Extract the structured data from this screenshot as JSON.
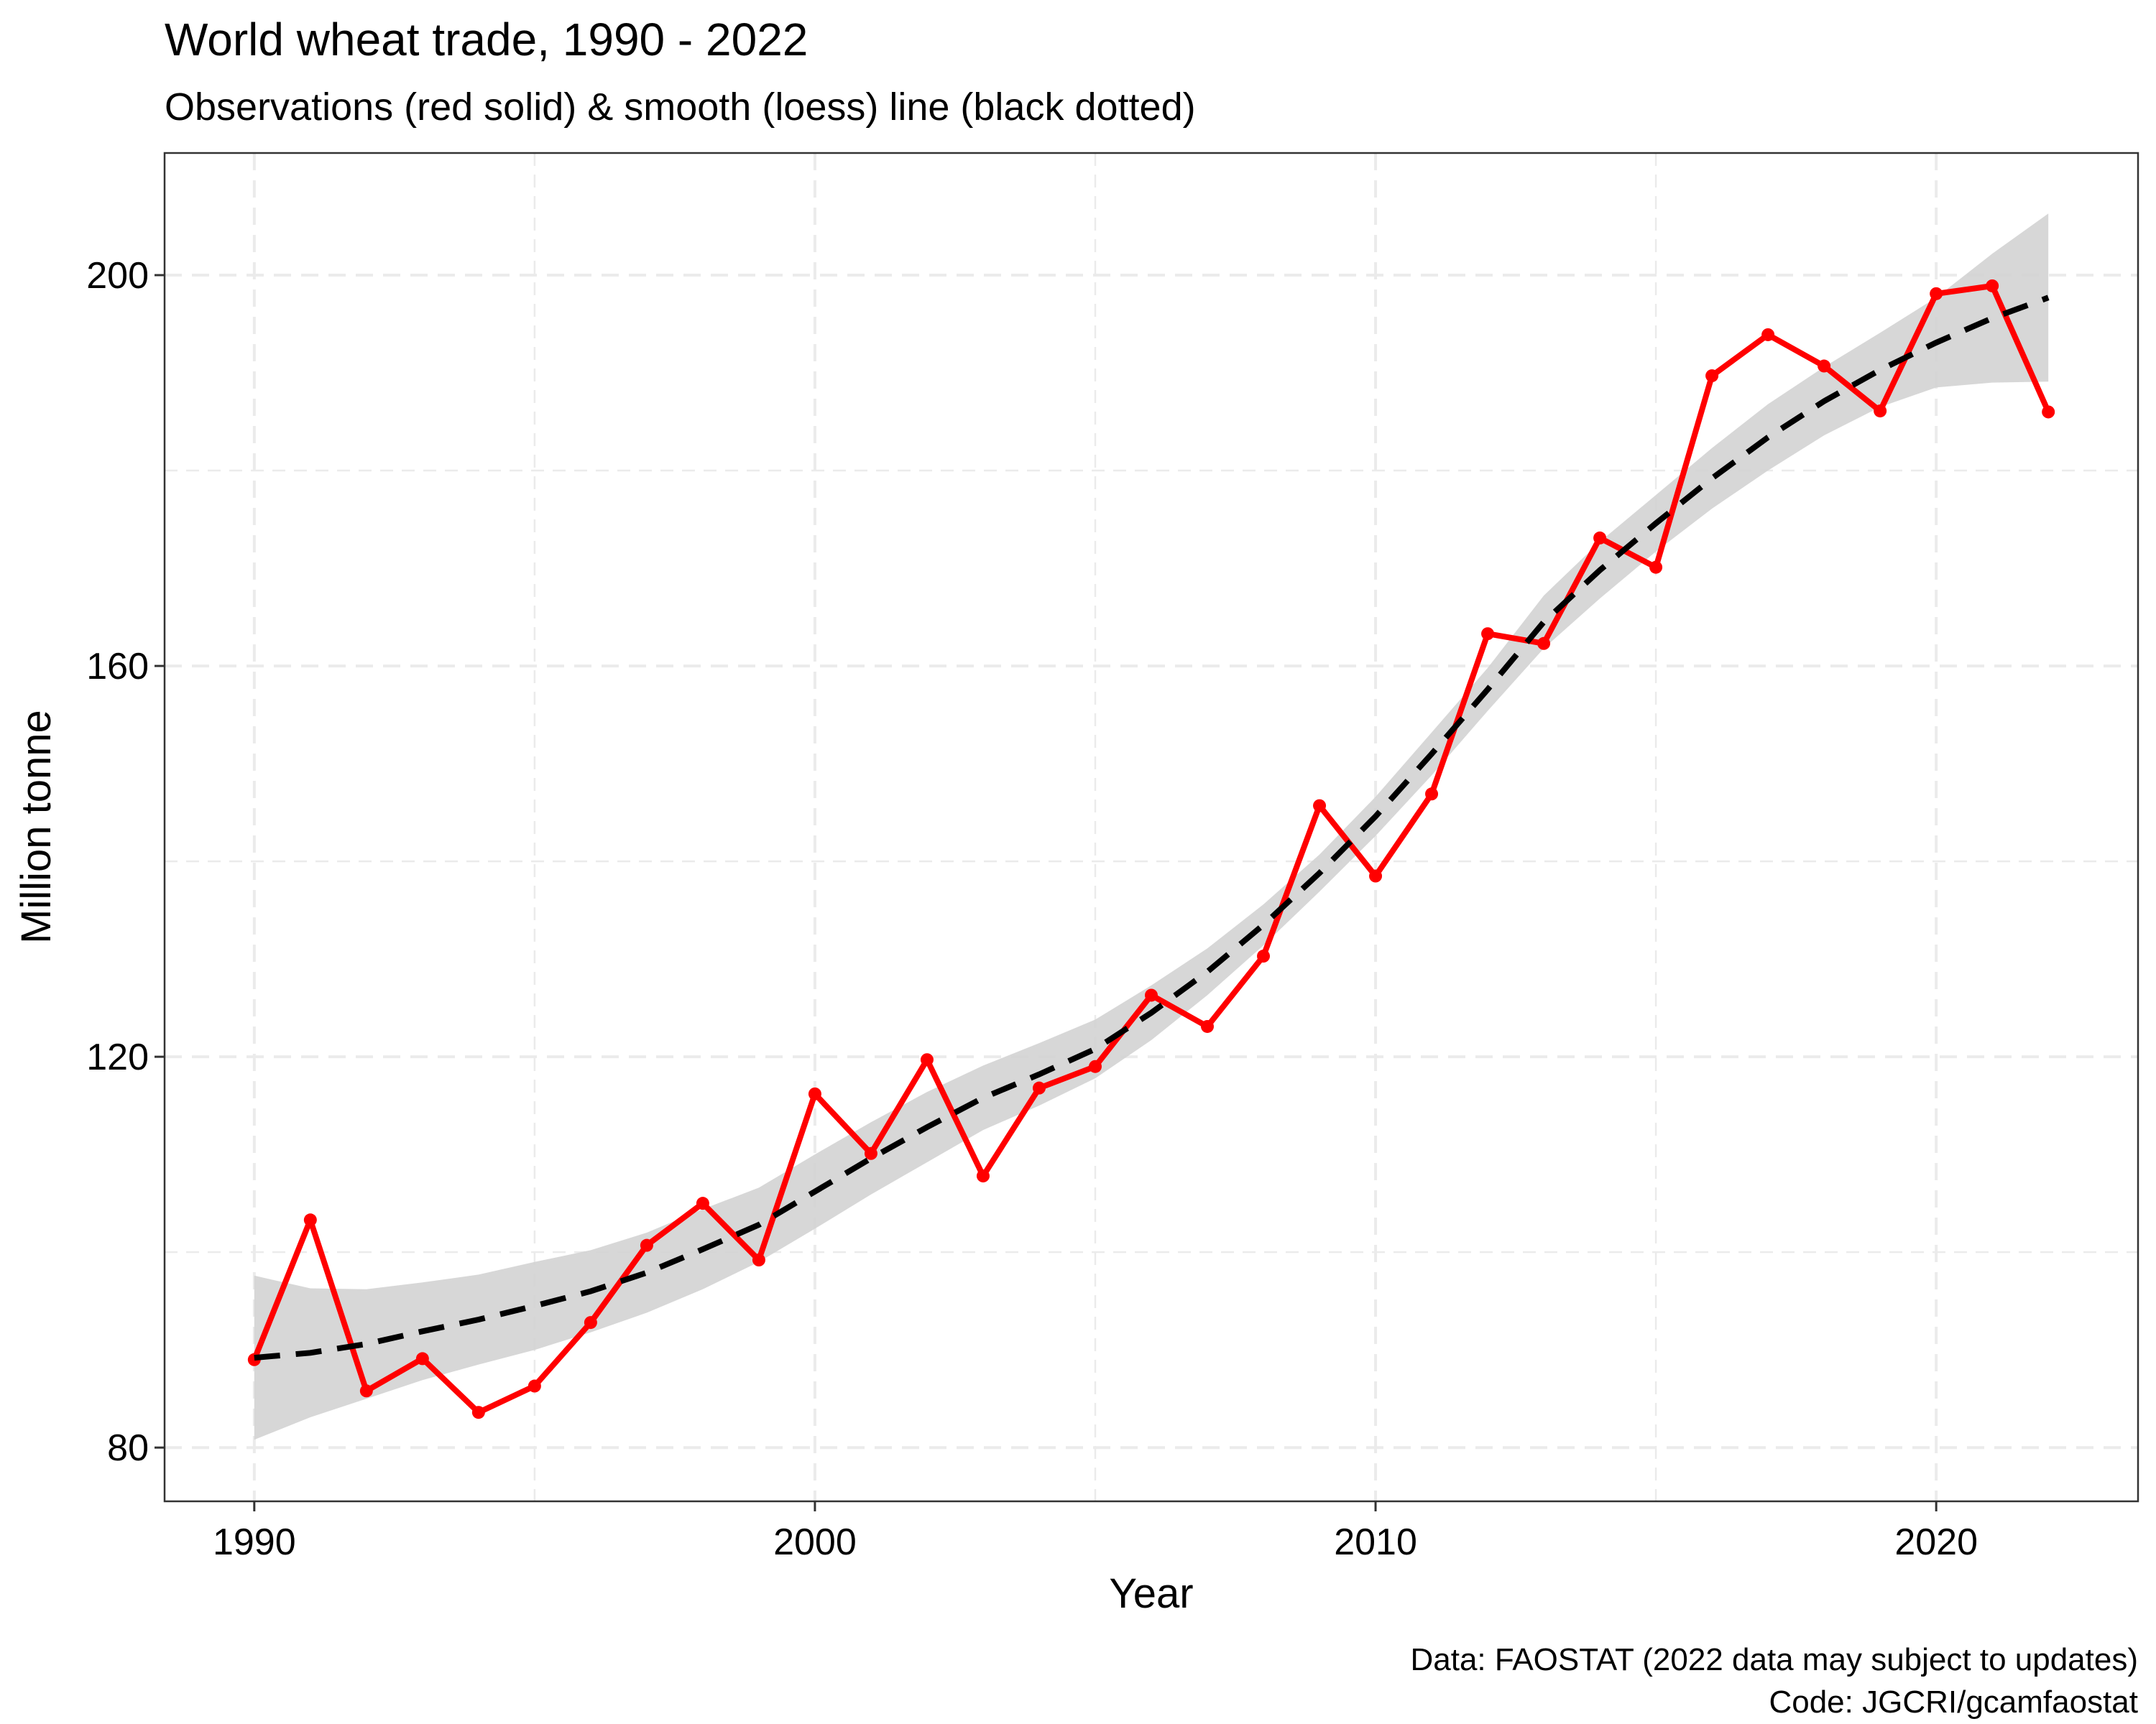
{
  "chart_data": {
    "type": "line",
    "title": "World wheat trade, 1990 - 2022",
    "subtitle": "Observations (red solid) & smooth (loess) line (black dotted)",
    "xlabel": "Year",
    "ylabel": "Million tonne",
    "caption_lines": [
      "Data: FAOSTAT (2022 data may subject to updates)",
      "Code: JGCRI/gcamfaostat"
    ],
    "xlim": [
      1988.4,
      2023.6
    ],
    "ylim": [
      74.5,
      212.5
    ],
    "x_ticks": [
      1990,
      2000,
      2010,
      2020
    ],
    "y_ticks": [
      80,
      120,
      160,
      200
    ],
    "x_minor": [
      1995,
      2005,
      2015
    ],
    "y_minor": [
      100,
      140,
      180
    ],
    "grid": true,
    "grid_style": "dashed",
    "legend": "none",
    "colors": {
      "observations": "#ff0000",
      "smooth": "#000000",
      "confidence_band": "#d3d3d3",
      "grid": "#ebebeb",
      "panel_border": "#333333"
    },
    "series": [
      {
        "style": "solid",
        "x": [
          1990,
          1991,
          1992,
          1993,
          1994,
          1995,
          1996,
          1997,
          1998,
          1999,
          2000,
          2001,
          2002,
          2003,
          2004,
          2005,
          2006,
          2007,
          2008,
          2009,
          2010,
          2011,
          2012,
          2013,
          2014,
          2015,
          2016,
          2017,
          2018,
          2019,
          2020,
          2021,
          2022
        ],
        "y": [
          89.0,
          103.3,
          85.8,
          89.1,
          83.6,
          86.3,
          92.8,
          100.7,
          105.0,
          99.2,
          116.2,
          110.1,
          119.7,
          107.8,
          116.8,
          119.0,
          126.3,
          123.1,
          130.3,
          145.7,
          138.5,
          146.9,
          163.3,
          162.3,
          173.1,
          170.1,
          189.7,
          193.9,
          190.7,
          186.1,
          198.1,
          198.9,
          186.0
        ]
      },
      {
        "style": "dashed",
        "x": [
          1990,
          1991,
          1992,
          1993,
          1994,
          1995,
          1996,
          1997,
          1998,
          1999,
          2000,
          2001,
          2002,
          2003,
          2004,
          2005,
          2006,
          2007,
          2008,
          2009,
          2010,
          2011,
          2012,
          2013,
          2014,
          2015,
          2016,
          2017,
          2018,
          2019,
          2020,
          2021,
          2022
        ],
        "y": [
          89.2,
          89.7,
          90.6,
          91.9,
          93.1,
          94.5,
          96.0,
          97.9,
          100.3,
          102.8,
          106.2,
          109.6,
          112.8,
          115.8,
          118.2,
          120.8,
          124.5,
          128.7,
          133.5,
          138.8,
          144.6,
          151.0,
          157.6,
          164.5,
          169.8,
          174.6,
          179.2,
          183.4,
          187.1,
          190.3,
          193.1,
          195.6,
          197.7
        ],
        "band_low": [
          80.8,
          83.1,
          85.0,
          86.9,
          88.5,
          90.0,
          91.8,
          93.8,
          96.2,
          99.0,
          102.4,
          105.9,
          109.2,
          112.5,
          115.0,
          117.8,
          121.7,
          126.3,
          131.4,
          136.9,
          142.6,
          148.8,
          155.4,
          161.8,
          166.9,
          171.7,
          176.1,
          180.0,
          183.6,
          186.5,
          188.5,
          189.0,
          189.1
        ],
        "band_high": [
          97.6,
          96.3,
          96.2,
          96.9,
          97.7,
          99.0,
          100.2,
          102.0,
          104.4,
          106.6,
          110.0,
          113.3,
          116.4,
          119.1,
          121.4,
          123.8,
          127.3,
          131.1,
          135.6,
          140.7,
          146.6,
          153.2,
          159.8,
          167.2,
          172.7,
          177.5,
          182.3,
          186.8,
          190.6,
          194.1,
          197.7,
          202.2,
          206.3
        ]
      }
    ]
  }
}
